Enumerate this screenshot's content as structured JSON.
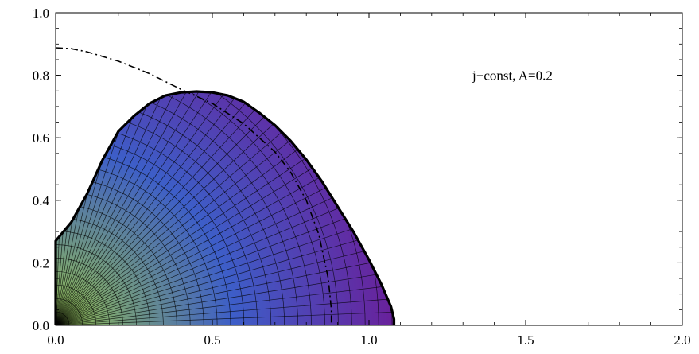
{
  "chart_data": {
    "type": "area",
    "title": "",
    "xlabel": "",
    "ylabel": "",
    "xlim": [
      0,
      2
    ],
    "ylim": [
      0,
      1
    ],
    "x_ticks": [
      {
        "value": 0.0,
        "label": "0.0"
      },
      {
        "value": 0.5,
        "label": "0.5"
      },
      {
        "value": 1.0,
        "label": "1.0"
      },
      {
        "value": 1.5,
        "label": "1.5"
      },
      {
        "value": 2.0,
        "label": "2.0"
      }
    ],
    "y_ticks": [
      {
        "value": 0.0,
        "label": "0.0"
      },
      {
        "value": 0.2,
        "label": "0.2"
      },
      {
        "value": 0.4,
        "label": "0.4"
      },
      {
        "value": 0.6,
        "label": "0.6"
      },
      {
        "value": 0.8,
        "label": "0.8"
      },
      {
        "value": 1.0,
        "label": "1.0"
      }
    ],
    "annotation": {
      "text": "j−const, A=0.2",
      "x": 1.33,
      "y": 0.8
    },
    "grid": false,
    "legend": "none",
    "colors": {
      "frame": "#000000",
      "boundary": "#000000",
      "mesh": "#000000",
      "fill_outer": "#6a1f9a",
      "fill_mid": "#3d5ec8",
      "fill_inner": "#96c24e"
    },
    "series": [
      {
        "kind": "filled_region_boundary",
        "x": [
          0.0,
          0.0,
          0.05,
          0.1,
          0.15,
          0.2,
          0.25,
          0.3,
          0.35,
          0.4,
          0.45,
          0.5,
          0.55,
          0.6,
          0.65,
          0.7,
          0.75,
          0.8,
          0.85,
          0.9,
          0.95,
          1.0,
          1.04,
          1.07,
          1.08,
          1.08
        ],
        "y": [
          0.0,
          0.27,
          0.33,
          0.42,
          0.53,
          0.62,
          0.67,
          0.71,
          0.735,
          0.745,
          0.748,
          0.745,
          0.735,
          0.715,
          0.68,
          0.64,
          0.59,
          0.53,
          0.46,
          0.38,
          0.3,
          0.21,
          0.13,
          0.06,
          0.02,
          0.0
        ]
      },
      {
        "kind": "dash_dot_curve",
        "x": [
          0.0,
          0.05,
          0.1,
          0.2,
          0.3,
          0.4,
          0.5,
          0.6,
          0.7,
          0.75,
          0.8,
          0.84,
          0.87,
          0.88,
          0.88
        ],
        "y": [
          0.888,
          0.885,
          0.875,
          0.845,
          0.805,
          0.755,
          0.71,
          0.645,
          0.555,
          0.49,
          0.4,
          0.29,
          0.15,
          0.05,
          0.0
        ]
      }
    ]
  }
}
